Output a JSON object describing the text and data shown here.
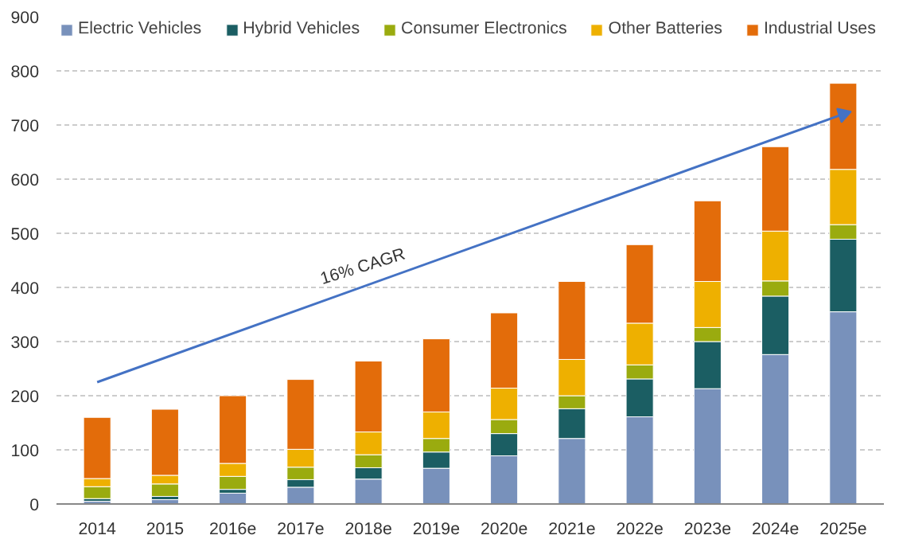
{
  "chart_data": {
    "type": "bar",
    "stacked": true,
    "categories": [
      "2014",
      "2015",
      "2016e",
      "2017e",
      "2018e",
      "2019e",
      "2020e",
      "2021e",
      "2022e",
      "2023e",
      "2024e",
      "2025e"
    ],
    "series": [
      {
        "name": "Electric Vehicles",
        "color": "#7891bb",
        "values": [
          5,
          8,
          20,
          31,
          46,
          66,
          89,
          121,
          161,
          213,
          276,
          355
        ]
      },
      {
        "name": "Hybrid Vehicles",
        "color": "#1b5e63",
        "values": [
          5,
          6,
          7,
          14,
          21,
          30,
          41,
          55,
          70,
          87,
          108,
          134
        ]
      },
      {
        "name": "Consumer Electronics",
        "color": "#9aab0f",
        "values": [
          22,
          23,
          24,
          23,
          24,
          25,
          26,
          24,
          26,
          26,
          28,
          27
        ]
      },
      {
        "name": "Other Batteries",
        "color": "#eeb000",
        "values": [
          15,
          16,
          24,
          33,
          42,
          49,
          58,
          67,
          77,
          85,
          92,
          102
        ]
      },
      {
        "name": "Industrial Uses",
        "color": "#e36c0a",
        "values": [
          113,
          122,
          125,
          129,
          131,
          135,
          139,
          144,
          145,
          149,
          156,
          159
        ]
      },
      {
        "type": "line",
        "color": "#4472c4",
        "values": [
          225,
          null,
          null,
          null,
          null,
          null,
          null,
          null,
          null,
          null,
          null,
          720
        ]
      }
    ],
    "ylim": [
      0,
      900
    ],
    "yticks": [
      0,
      100,
      200,
      300,
      400,
      500,
      600,
      700,
      800,
      900
    ],
    "grid": "y",
    "legend": "top",
    "annotations": [
      "16% CAGR"
    ]
  }
}
